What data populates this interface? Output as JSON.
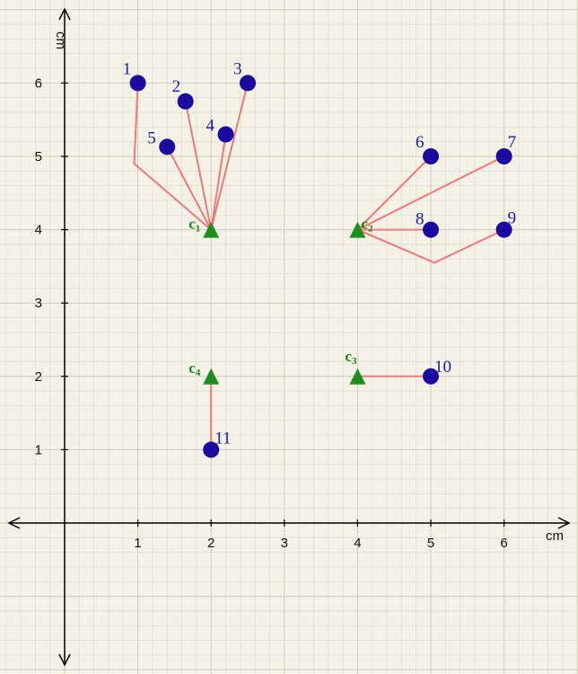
{
  "axes": {
    "x_unit": "cm",
    "y_unit": "cm",
    "x_ticks": [
      "1",
      "2",
      "3",
      "4",
      "5",
      "6"
    ],
    "y_ticks": [
      "1",
      "2",
      "3",
      "4",
      "5",
      "6"
    ],
    "xlim": [
      -0.7,
      6.9
    ],
    "ylim": [
      -1.9,
      7.0
    ],
    "grid": true
  },
  "colors": {
    "background": "#f4f2e6",
    "grid_minor": "#e2ded0",
    "grid_major": "#cfcabb",
    "point": "#1a0aa0",
    "centroid": "#1e8f1e",
    "link": "#f07878"
  },
  "points": [
    {
      "label": "1",
      "x": 1.0,
      "y": 6.0
    },
    {
      "label": "2",
      "x": 1.65,
      "y": 5.75
    },
    {
      "label": "3",
      "x": 2.5,
      "y": 6.0
    },
    {
      "label": "4",
      "x": 2.2,
      "y": 5.3
    },
    {
      "label": "5",
      "x": 1.4,
      "y": 5.13
    },
    {
      "label": "6",
      "x": 5.0,
      "y": 5.0
    },
    {
      "label": "7",
      "x": 6.0,
      "y": 5.0
    },
    {
      "label": "8",
      "x": 5.0,
      "y": 4.0
    },
    {
      "label": "9",
      "x": 6.0,
      "y": 4.0
    },
    {
      "label": "10",
      "x": 5.0,
      "y": 2.0
    },
    {
      "label": "11",
      "x": 2.0,
      "y": 1.0
    }
  ],
  "centroids": [
    {
      "letter": "c",
      "sub": "1",
      "x": 2.0,
      "y": 4.0
    },
    {
      "letter": "c",
      "sub": "2",
      "x": 4.0,
      "y": 4.0
    },
    {
      "letter": "c",
      "sub": "3",
      "x": 4.0,
      "y": 2.0
    },
    {
      "letter": "c",
      "sub": "4",
      "x": 2.0,
      "y": 2.0
    }
  ],
  "links": [
    {
      "centroid": "c1",
      "path": [
        [
          1.0,
          6.0
        ],
        [
          0.95,
          4.9
        ],
        [
          2.0,
          4.0
        ]
      ]
    },
    {
      "centroid": "c1",
      "path": [
        [
          1.65,
          5.75
        ],
        [
          2.0,
          4.0
        ]
      ]
    },
    {
      "centroid": "c1",
      "path": [
        [
          2.5,
          6.0
        ],
        [
          2.0,
          4.0
        ]
      ]
    },
    {
      "centroid": "c1",
      "path": [
        [
          2.2,
          5.3
        ],
        [
          2.0,
          4.0
        ]
      ]
    },
    {
      "centroid": "c1",
      "path": [
        [
          1.4,
          5.13
        ],
        [
          2.0,
          4.0
        ]
      ]
    },
    {
      "centroid": "c2",
      "path": [
        [
          5.0,
          5.0
        ],
        [
          4.0,
          4.0
        ]
      ]
    },
    {
      "centroid": "c2",
      "path": [
        [
          6.0,
          5.0
        ],
        [
          4.0,
          4.0
        ]
      ]
    },
    {
      "centroid": "c2",
      "path": [
        [
          5.0,
          4.0
        ],
        [
          4.0,
          4.0
        ]
      ]
    },
    {
      "centroid": "c2",
      "path": [
        [
          6.0,
          4.0
        ],
        [
          5.05,
          3.55
        ],
        [
          4.0,
          4.0
        ]
      ]
    },
    {
      "centroid": "c3",
      "path": [
        [
          5.0,
          2.0
        ],
        [
          4.0,
          2.0
        ]
      ]
    },
    {
      "centroid": "c4",
      "path": [
        [
          2.0,
          1.0
        ],
        [
          2.0,
          2.0
        ]
      ]
    }
  ]
}
